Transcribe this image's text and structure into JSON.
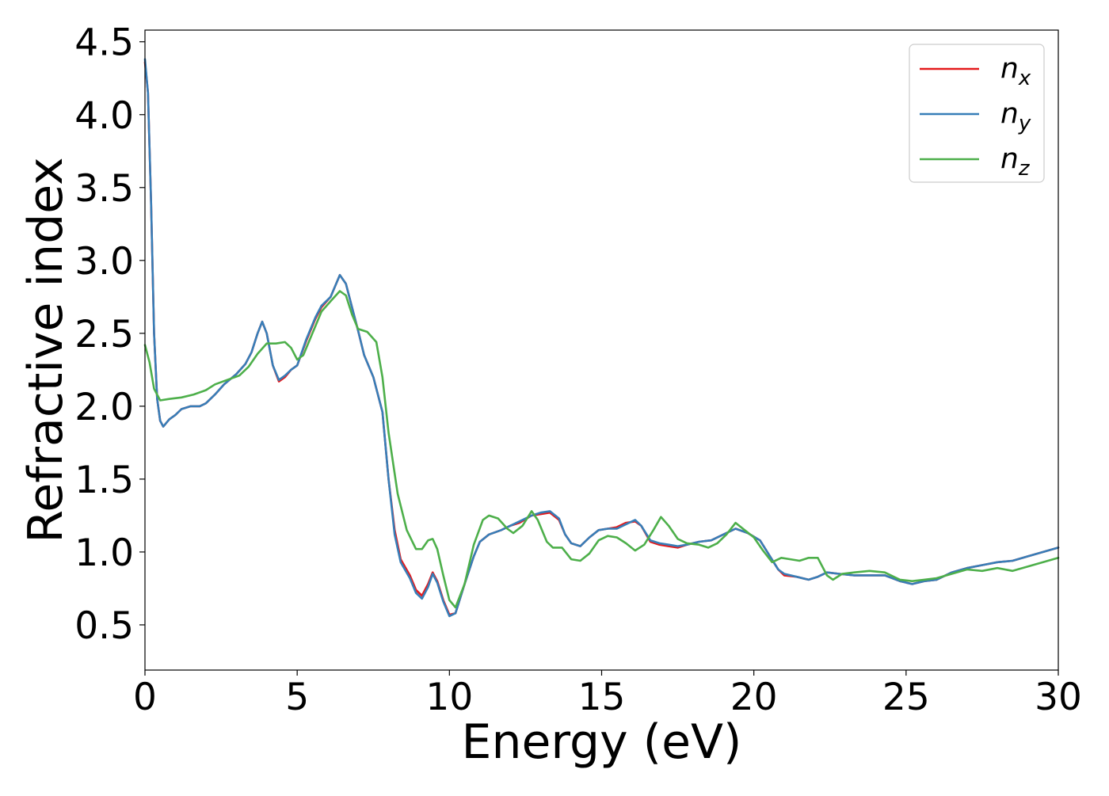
{
  "chart_data": {
    "type": "line",
    "title": "",
    "xlabel": "Energy (eV)",
    "ylabel": "Refractive index",
    "xlim": [
      0,
      30
    ],
    "ylim": [
      0.19,
      4.58
    ],
    "xticks": [
      0,
      5,
      10,
      15,
      20,
      25,
      30
    ],
    "yticks": [
      0.5,
      1.0,
      1.5,
      2.0,
      2.5,
      3.0,
      3.5,
      4.0,
      4.5
    ],
    "grid": false,
    "legend_position": "top-right",
    "series": [
      {
        "name": "n_x",
        "label_base": "n",
        "label_sub": "x",
        "color": "#e41a1c",
        "points": [
          [
            0,
            4.36
          ],
          [
            0.1,
            4.15
          ],
          [
            0.2,
            3.4
          ],
          [
            0.3,
            2.5
          ],
          [
            0.4,
            2.05
          ],
          [
            0.5,
            1.9
          ],
          [
            0.6,
            1.86
          ],
          [
            0.8,
            1.91
          ],
          [
            1.0,
            1.94
          ],
          [
            1.2,
            1.98
          ],
          [
            1.5,
            2.0
          ],
          [
            1.8,
            2.0
          ],
          [
            2.0,
            2.02
          ],
          [
            2.3,
            2.08
          ],
          [
            2.6,
            2.15
          ],
          [
            3.0,
            2.22
          ],
          [
            3.3,
            2.29
          ],
          [
            3.5,
            2.37
          ],
          [
            3.7,
            2.5
          ],
          [
            3.85,
            2.58
          ],
          [
            4.0,
            2.5
          ],
          [
            4.2,
            2.28
          ],
          [
            4.4,
            2.17
          ],
          [
            4.6,
            2.2
          ],
          [
            4.8,
            2.25
          ],
          [
            5.0,
            2.28
          ],
          [
            5.3,
            2.45
          ],
          [
            5.6,
            2.6
          ],
          [
            5.8,
            2.68
          ],
          [
            6.1,
            2.75
          ],
          [
            6.4,
            2.9
          ],
          [
            6.6,
            2.84
          ],
          [
            6.8,
            2.68
          ],
          [
            7.0,
            2.52
          ],
          [
            7.2,
            2.35
          ],
          [
            7.5,
            2.2
          ],
          [
            7.8,
            1.96
          ],
          [
            8.0,
            1.5
          ],
          [
            8.2,
            1.15
          ],
          [
            8.4,
            0.95
          ],
          [
            8.7,
            0.84
          ],
          [
            8.9,
            0.74
          ],
          [
            9.1,
            0.7
          ],
          [
            9.3,
            0.78
          ],
          [
            9.45,
            0.86
          ],
          [
            9.6,
            0.8
          ],
          [
            9.8,
            0.67
          ],
          [
            10.0,
            0.57
          ],
          [
            10.2,
            0.58
          ],
          [
            10.5,
            0.78
          ],
          [
            10.8,
            0.97
          ],
          [
            11.0,
            1.07
          ],
          [
            11.3,
            1.12
          ],
          [
            11.7,
            1.15
          ],
          [
            12.0,
            1.18
          ],
          [
            12.3,
            1.2
          ],
          [
            12.7,
            1.25
          ],
          [
            13.0,
            1.26
          ],
          [
            13.3,
            1.27
          ],
          [
            13.6,
            1.22
          ],
          [
            13.8,
            1.12
          ],
          [
            14.0,
            1.06
          ],
          [
            14.3,
            1.04
          ],
          [
            14.6,
            1.1
          ],
          [
            14.9,
            1.15
          ],
          [
            15.2,
            1.16
          ],
          [
            15.5,
            1.17
          ],
          [
            15.8,
            1.2
          ],
          [
            16.1,
            1.21
          ],
          [
            16.3,
            1.18
          ],
          [
            16.6,
            1.07
          ],
          [
            16.9,
            1.05
          ],
          [
            17.2,
            1.04
          ],
          [
            17.5,
            1.03
          ],
          [
            17.8,
            1.05
          ],
          [
            18.2,
            1.07
          ],
          [
            18.6,
            1.08
          ],
          [
            19.0,
            1.12
          ],
          [
            19.4,
            1.16
          ],
          [
            19.8,
            1.13
          ],
          [
            20.2,
            1.08
          ],
          [
            20.5,
            0.98
          ],
          [
            20.8,
            0.88
          ],
          [
            21.0,
            0.84
          ],
          [
            21.4,
            0.83
          ],
          [
            21.8,
            0.81
          ],
          [
            22.1,
            0.83
          ],
          [
            22.4,
            0.86
          ],
          [
            22.8,
            0.85
          ],
          [
            23.3,
            0.84
          ],
          [
            23.8,
            0.84
          ],
          [
            24.3,
            0.84
          ],
          [
            24.8,
            0.8
          ],
          [
            25.2,
            0.78
          ],
          [
            25.6,
            0.8
          ],
          [
            26.0,
            0.81
          ],
          [
            26.5,
            0.86
          ],
          [
            27.0,
            0.89
          ],
          [
            27.5,
            0.91
          ],
          [
            28.0,
            0.93
          ],
          [
            28.5,
            0.94
          ],
          [
            29.0,
            0.97
          ],
          [
            29.5,
            1.0
          ],
          [
            30.0,
            1.03
          ]
        ]
      },
      {
        "name": "n_y",
        "label_base": "n",
        "label_sub": "y",
        "color": "#377eb8",
        "points": [
          [
            0,
            4.38
          ],
          [
            0.1,
            4.15
          ],
          [
            0.2,
            3.4
          ],
          [
            0.3,
            2.5
          ],
          [
            0.4,
            2.05
          ],
          [
            0.5,
            1.9
          ],
          [
            0.6,
            1.86
          ],
          [
            0.8,
            1.91
          ],
          [
            1.0,
            1.94
          ],
          [
            1.2,
            1.98
          ],
          [
            1.5,
            2.0
          ],
          [
            1.8,
            2.0
          ],
          [
            2.0,
            2.02
          ],
          [
            2.3,
            2.08
          ],
          [
            2.6,
            2.15
          ],
          [
            3.0,
            2.22
          ],
          [
            3.3,
            2.29
          ],
          [
            3.5,
            2.37
          ],
          [
            3.7,
            2.5
          ],
          [
            3.85,
            2.58
          ],
          [
            4.0,
            2.5
          ],
          [
            4.2,
            2.28
          ],
          [
            4.4,
            2.18
          ],
          [
            4.6,
            2.21
          ],
          [
            4.8,
            2.25
          ],
          [
            5.0,
            2.28
          ],
          [
            5.3,
            2.46
          ],
          [
            5.6,
            2.61
          ],
          [
            5.8,
            2.69
          ],
          [
            6.1,
            2.75
          ],
          [
            6.4,
            2.9
          ],
          [
            6.6,
            2.84
          ],
          [
            6.8,
            2.68
          ],
          [
            7.0,
            2.52
          ],
          [
            7.2,
            2.35
          ],
          [
            7.5,
            2.2
          ],
          [
            7.8,
            1.96
          ],
          [
            8.0,
            1.5
          ],
          [
            8.2,
            1.12
          ],
          [
            8.4,
            0.93
          ],
          [
            8.7,
            0.82
          ],
          [
            8.9,
            0.72
          ],
          [
            9.1,
            0.68
          ],
          [
            9.3,
            0.76
          ],
          [
            9.45,
            0.85
          ],
          [
            9.6,
            0.79
          ],
          [
            9.8,
            0.66
          ],
          [
            10.0,
            0.56
          ],
          [
            10.2,
            0.58
          ],
          [
            10.5,
            0.78
          ],
          [
            10.8,
            0.97
          ],
          [
            11.0,
            1.07
          ],
          [
            11.3,
            1.12
          ],
          [
            11.7,
            1.15
          ],
          [
            12.0,
            1.18
          ],
          [
            12.3,
            1.21
          ],
          [
            12.7,
            1.25
          ],
          [
            13.0,
            1.27
          ],
          [
            13.3,
            1.28
          ],
          [
            13.6,
            1.23
          ],
          [
            13.8,
            1.12
          ],
          [
            14.0,
            1.06
          ],
          [
            14.3,
            1.04
          ],
          [
            14.6,
            1.1
          ],
          [
            14.9,
            1.15
          ],
          [
            15.2,
            1.16
          ],
          [
            15.5,
            1.16
          ],
          [
            15.8,
            1.19
          ],
          [
            16.1,
            1.22
          ],
          [
            16.3,
            1.18
          ],
          [
            16.6,
            1.08
          ],
          [
            16.9,
            1.06
          ],
          [
            17.2,
            1.05
          ],
          [
            17.5,
            1.04
          ],
          [
            17.8,
            1.05
          ],
          [
            18.2,
            1.07
          ],
          [
            18.6,
            1.08
          ],
          [
            19.0,
            1.12
          ],
          [
            19.4,
            1.16
          ],
          [
            19.8,
            1.13
          ],
          [
            20.2,
            1.08
          ],
          [
            20.5,
            0.98
          ],
          [
            20.8,
            0.88
          ],
          [
            21.0,
            0.85
          ],
          [
            21.4,
            0.83
          ],
          [
            21.8,
            0.81
          ],
          [
            22.1,
            0.83
          ],
          [
            22.4,
            0.86
          ],
          [
            22.8,
            0.85
          ],
          [
            23.3,
            0.84
          ],
          [
            23.8,
            0.84
          ],
          [
            24.3,
            0.84
          ],
          [
            24.8,
            0.8
          ],
          [
            25.2,
            0.78
          ],
          [
            25.6,
            0.8
          ],
          [
            26.0,
            0.81
          ],
          [
            26.5,
            0.86
          ],
          [
            27.0,
            0.89
          ],
          [
            27.5,
            0.91
          ],
          [
            28.0,
            0.93
          ],
          [
            28.5,
            0.94
          ],
          [
            29.0,
            0.97
          ],
          [
            29.5,
            1.0
          ],
          [
            30.0,
            1.03
          ]
        ]
      },
      {
        "name": "n_z",
        "label_base": "n",
        "label_sub": "z",
        "color": "#4daf4a",
        "points": [
          [
            0,
            2.42
          ],
          [
            0.15,
            2.3
          ],
          [
            0.3,
            2.12
          ],
          [
            0.5,
            2.04
          ],
          [
            0.8,
            2.05
          ],
          [
            1.2,
            2.06
          ],
          [
            1.6,
            2.08
          ],
          [
            2.0,
            2.11
          ],
          [
            2.3,
            2.15
          ],
          [
            2.7,
            2.18
          ],
          [
            3.1,
            2.21
          ],
          [
            3.4,
            2.27
          ],
          [
            3.7,
            2.36
          ],
          [
            4.0,
            2.43
          ],
          [
            4.3,
            2.43
          ],
          [
            4.6,
            2.44
          ],
          [
            4.8,
            2.4
          ],
          [
            5.0,
            2.32
          ],
          [
            5.2,
            2.35
          ],
          [
            5.5,
            2.5
          ],
          [
            5.8,
            2.65
          ],
          [
            6.1,
            2.72
          ],
          [
            6.4,
            2.79
          ],
          [
            6.6,
            2.76
          ],
          [
            6.8,
            2.63
          ],
          [
            7.0,
            2.53
          ],
          [
            7.3,
            2.51
          ],
          [
            7.6,
            2.44
          ],
          [
            7.8,
            2.2
          ],
          [
            8.0,
            1.82
          ],
          [
            8.3,
            1.4
          ],
          [
            8.6,
            1.15
          ],
          [
            8.9,
            1.02
          ],
          [
            9.1,
            1.02
          ],
          [
            9.3,
            1.08
          ],
          [
            9.45,
            1.09
          ],
          [
            9.6,
            1.02
          ],
          [
            9.8,
            0.84
          ],
          [
            10.0,
            0.67
          ],
          [
            10.2,
            0.62
          ],
          [
            10.5,
            0.78
          ],
          [
            10.8,
            1.05
          ],
          [
            11.1,
            1.22
          ],
          [
            11.3,
            1.25
          ],
          [
            11.6,
            1.23
          ],
          [
            11.9,
            1.16
          ],
          [
            12.1,
            1.13
          ],
          [
            12.4,
            1.18
          ],
          [
            12.7,
            1.28
          ],
          [
            12.9,
            1.22
          ],
          [
            13.2,
            1.07
          ],
          [
            13.4,
            1.03
          ],
          [
            13.7,
            1.03
          ],
          [
            14.0,
            0.95
          ],
          [
            14.3,
            0.94
          ],
          [
            14.6,
            0.99
          ],
          [
            14.9,
            1.08
          ],
          [
            15.2,
            1.11
          ],
          [
            15.5,
            1.1
          ],
          [
            15.8,
            1.06
          ],
          [
            16.1,
            1.01
          ],
          [
            16.4,
            1.05
          ],
          [
            16.7,
            1.15
          ],
          [
            16.95,
            1.24
          ],
          [
            17.2,
            1.18
          ],
          [
            17.5,
            1.09
          ],
          [
            17.8,
            1.06
          ],
          [
            18.2,
            1.05
          ],
          [
            18.5,
            1.03
          ],
          [
            18.8,
            1.06
          ],
          [
            19.1,
            1.12
          ],
          [
            19.4,
            1.2
          ],
          [
            19.7,
            1.15
          ],
          [
            20.0,
            1.1
          ],
          [
            20.3,
            1.01
          ],
          [
            20.6,
            0.93
          ],
          [
            20.9,
            0.96
          ],
          [
            21.2,
            0.95
          ],
          [
            21.5,
            0.94
          ],
          [
            21.8,
            0.96
          ],
          [
            22.1,
            0.96
          ],
          [
            22.4,
            0.84
          ],
          [
            22.6,
            0.81
          ],
          [
            22.9,
            0.85
          ],
          [
            23.3,
            0.86
          ],
          [
            23.8,
            0.87
          ],
          [
            24.3,
            0.86
          ],
          [
            24.8,
            0.81
          ],
          [
            25.2,
            0.8
          ],
          [
            25.6,
            0.81
          ],
          [
            26.0,
            0.82
          ],
          [
            26.5,
            0.85
          ],
          [
            27.0,
            0.88
          ],
          [
            27.5,
            0.87
          ],
          [
            28.0,
            0.89
          ],
          [
            28.5,
            0.87
          ],
          [
            29.0,
            0.9
          ],
          [
            29.5,
            0.93
          ],
          [
            30.0,
            0.96
          ]
        ]
      }
    ]
  }
}
